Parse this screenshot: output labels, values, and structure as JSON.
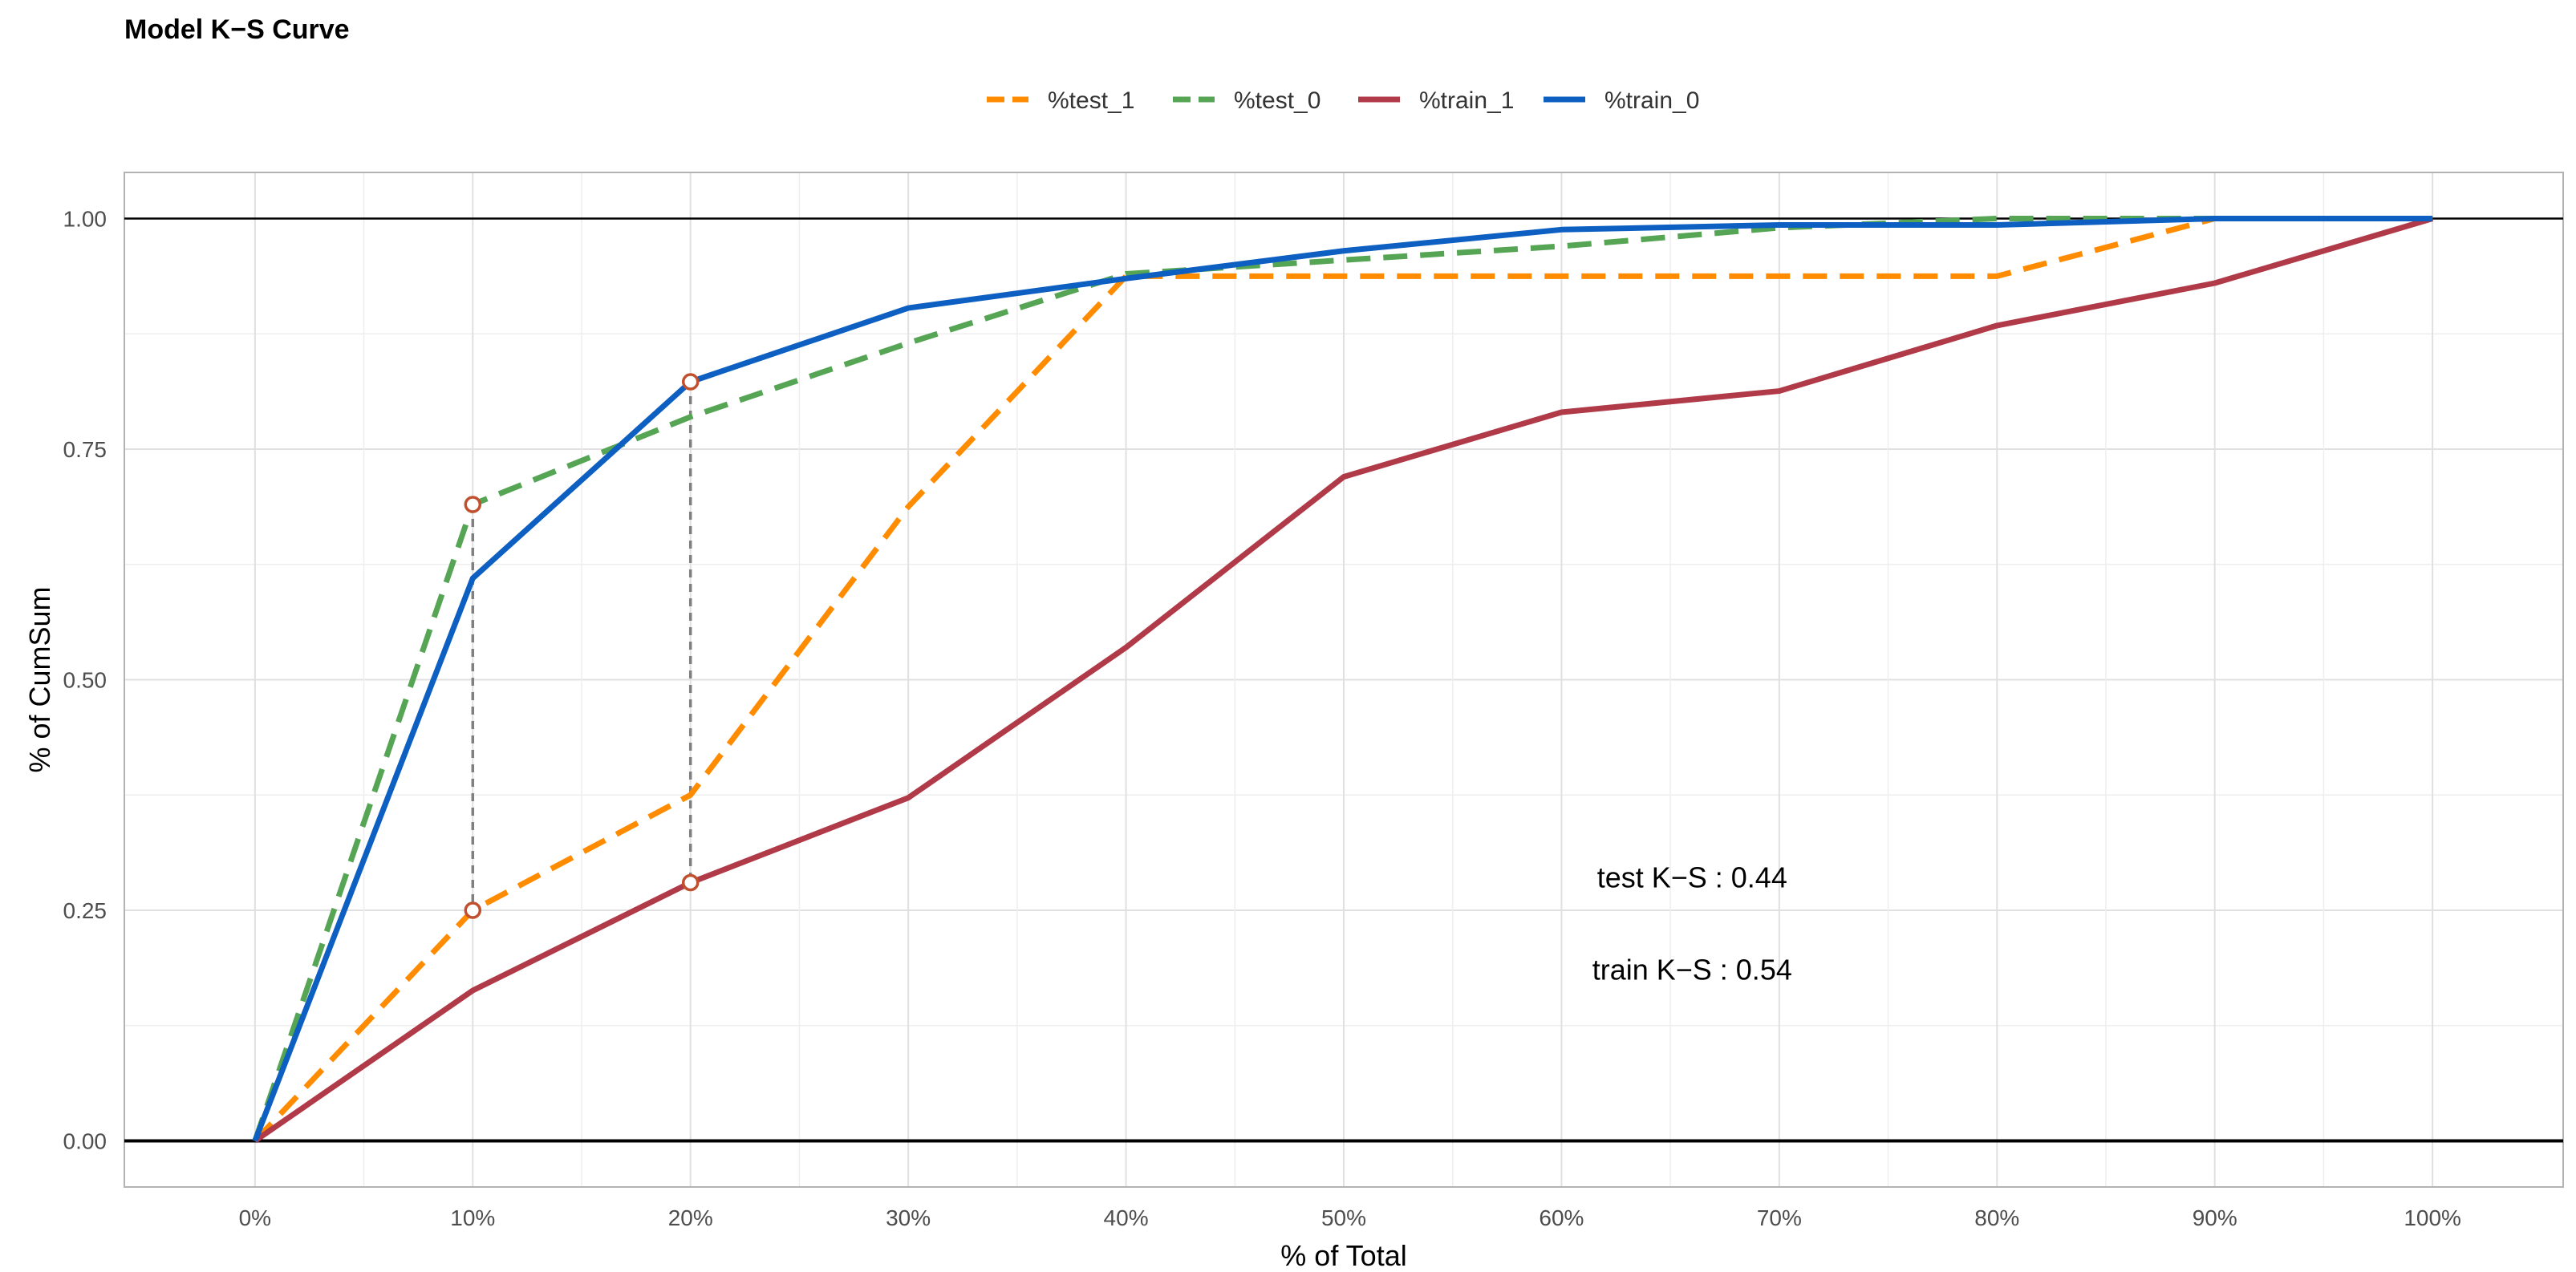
{
  "chart_data": {
    "type": "line",
    "title": "Model K−S Curve",
    "xlabel": "% of Total",
    "ylabel": "% of CumSum",
    "x": [
      0,
      10,
      20,
      30,
      40,
      50,
      60,
      70,
      80,
      90,
      100
    ],
    "x_tick_labels": [
      "0%",
      "10%",
      "20%",
      "30%",
      "40%",
      "50%",
      "60%",
      "70%",
      "80%",
      "90%",
      "100%"
    ],
    "y_ticks": [
      0,
      0.25,
      0.5,
      0.75,
      1
    ],
    "y_tick_labels": [
      "0.00",
      "0.25",
      "0.50",
      "0.75",
      "1.00"
    ],
    "xlim": [
      -6,
      106
    ],
    "ylim": [
      -0.05,
      1.05
    ],
    "legend_position": "top",
    "series": [
      {
        "name": "%test_1",
        "color": "#FF8C00",
        "dash": "dashed",
        "values": [
          0,
          0.25,
          0.375,
          0.6875,
          0.9375,
          0.9375,
          0.9375,
          0.9375,
          0.9375,
          1.0,
          1.0
        ]
      },
      {
        "name": "%test_0",
        "color": "#55A555",
        "dash": "dashed",
        "values": [
          0,
          0.69,
          0.785,
          0.865,
          0.94,
          0.955,
          0.97,
          0.99,
          1.0,
          1.0,
          1.0
        ]
      },
      {
        "name": "%train_1",
        "color": "#B03A48",
        "dash": "solid",
        "values": [
          0,
          0.163,
          0.28,
          0.372,
          0.535,
          0.72,
          0.79,
          0.813,
          0.884,
          0.93,
          1.0
        ]
      },
      {
        "name": "%train_0",
        "color": "#0D5FC2",
        "dash": "solid",
        "values": [
          0,
          0.61,
          0.823,
          0.903,
          0.935,
          0.965,
          0.988,
          0.993,
          0.993,
          1.0,
          1.0
        ]
      }
    ],
    "ks_markers": [
      {
        "x": 10,
        "y_top": 0.69,
        "y_bottom": 0.25
      },
      {
        "x": 20,
        "y_top": 0.823,
        "y_bottom": 0.28
      }
    ],
    "reference_lines": [
      0,
      1
    ],
    "annotations": [
      {
        "label": "test K−S :",
        "value": "0.44",
        "x": 66,
        "y": 0.275
      },
      {
        "label": "train K−S :",
        "value": "0.54",
        "x": 66,
        "y": 0.175
      }
    ]
  }
}
